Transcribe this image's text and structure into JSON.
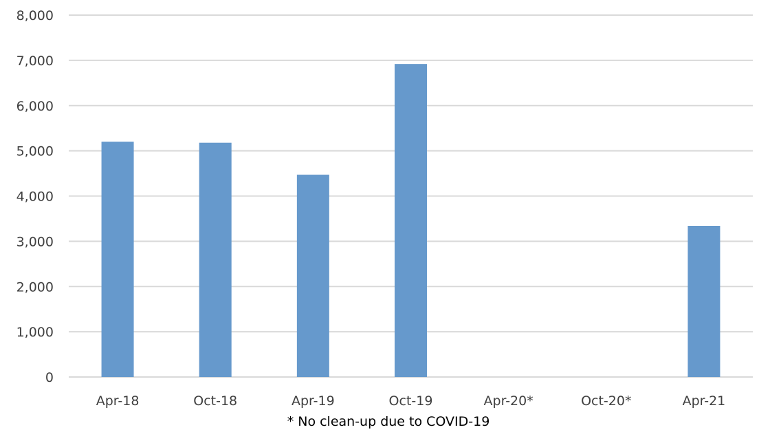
{
  "chart_data": {
    "type": "bar",
    "categories": [
      "Apr-18",
      "Oct-18",
      "Apr-19",
      "Oct-19",
      "Apr-20*",
      "Oct-20*",
      "Apr-21"
    ],
    "values": [
      5200,
      5180,
      4470,
      6920,
      null,
      null,
      3340
    ],
    "y_ticks": [
      "0",
      "1,000",
      "2,000",
      "3,000",
      "4,000",
      "5,000",
      "6,000",
      "7,000",
      "8,000"
    ],
    "ylim": [
      0,
      8000
    ],
    "grid": true,
    "legend": "none",
    "annotation": "* No clean-up due to COVID-19",
    "colors": {
      "bar": "#6699cc",
      "grid": "#d9d9d9",
      "tick_text": "#404040"
    }
  }
}
